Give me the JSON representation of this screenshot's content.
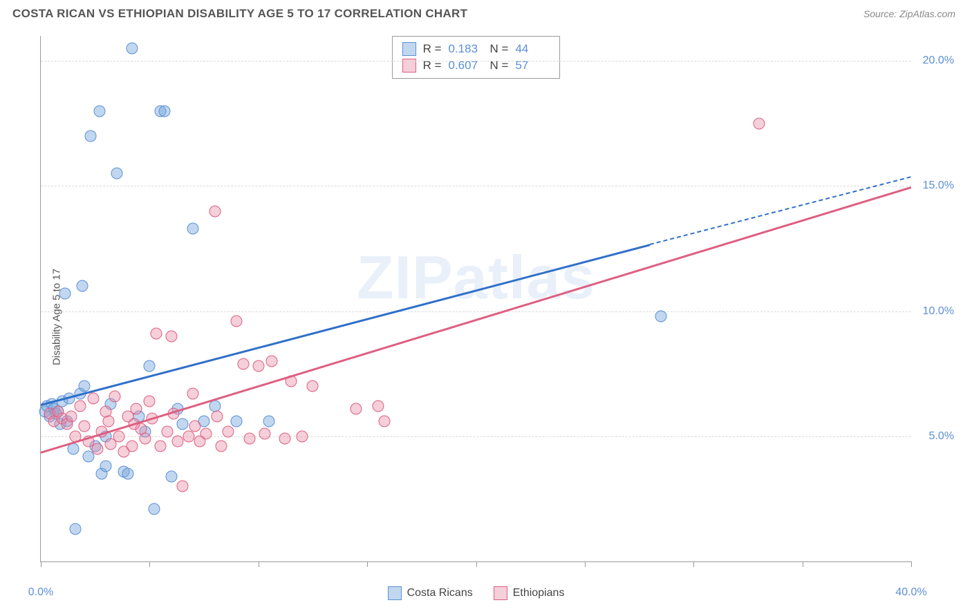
{
  "title": "COSTA RICAN VS ETHIOPIAN DISABILITY AGE 5 TO 17 CORRELATION CHART",
  "source": "Source: ZipAtlas.com",
  "ylabel": "Disability Age 5 to 17",
  "watermark": "ZIPatlas",
  "chart": {
    "type": "scatter",
    "xlim": [
      0,
      40
    ],
    "ylim": [
      0,
      21
    ],
    "y_ticks": [
      5,
      10,
      15,
      20
    ],
    "y_tick_labels": [
      "5.0%",
      "10.0%",
      "15.0%",
      "20.0%"
    ],
    "x_ticks": [
      0,
      5,
      10,
      15,
      20,
      25,
      30,
      35,
      40
    ],
    "x_tick_labels": [
      "0.0%",
      "",
      "",
      "",
      "",
      "",
      "",
      "",
      "40.0%"
    ],
    "background_color": "#ffffff",
    "grid_color": "#d9d9d9",
    "axis_color": "#999999",
    "label_color": "#5b8fd6",
    "point_radius": 8.5,
    "series": [
      {
        "name": "Costa Ricans",
        "fill": "rgba(118,166,219,0.45)",
        "stroke": "#5b8fd6",
        "trend_color": "#2f6fc9",
        "trend": {
          "x0": 0,
          "y0": 6.3,
          "x1": 28,
          "y1": 12.7,
          "extrap_x1": 40,
          "extrap_y1": 15.4
        },
        "R": "0.183",
        "N": "44",
        "points": [
          [
            0.2,
            6.0
          ],
          [
            0.3,
            6.2
          ],
          [
            0.4,
            5.8
          ],
          [
            0.5,
            6.3
          ],
          [
            0.6,
            6.1
          ],
          [
            0.7,
            5.9
          ],
          [
            0.8,
            6.0
          ],
          [
            1.0,
            6.4
          ],
          [
            1.2,
            5.6
          ],
          [
            1.3,
            6.5
          ],
          [
            1.5,
            4.5
          ],
          [
            1.6,
            1.3
          ],
          [
            1.8,
            6.7
          ],
          [
            2.0,
            7.0
          ],
          [
            2.2,
            4.2
          ],
          [
            2.3,
            17.0
          ],
          [
            2.5,
            4.6
          ],
          [
            2.7,
            18.0
          ],
          [
            2.8,
            3.5
          ],
          [
            3.0,
            5.0
          ],
          [
            3.2,
            6.3
          ],
          [
            3.5,
            15.5
          ],
          [
            3.8,
            3.6
          ],
          [
            4.0,
            3.5
          ],
          [
            4.2,
            20.5
          ],
          [
            4.5,
            5.8
          ],
          [
            4.8,
            5.2
          ],
          [
            5.0,
            7.8
          ],
          [
            5.2,
            2.1
          ],
          [
            5.5,
            18.0
          ],
          [
            5.7,
            18.0
          ],
          [
            6.0,
            3.4
          ],
          [
            6.3,
            6.1
          ],
          [
            6.5,
            5.5
          ],
          [
            7.0,
            13.3
          ],
          [
            7.5,
            5.6
          ],
          [
            8.0,
            6.2
          ],
          [
            9.0,
            5.6
          ],
          [
            10.5,
            5.6
          ],
          [
            1.1,
            10.7
          ],
          [
            1.9,
            11.0
          ],
          [
            0.9,
            5.5
          ],
          [
            28.5,
            9.8
          ],
          [
            3.0,
            3.8
          ]
        ]
      },
      {
        "name": "Ethiopians",
        "fill": "rgba(231,140,165,0.42)",
        "stroke": "#de5e81",
        "trend_color": "#de5e81",
        "trend": {
          "x0": 0,
          "y0": 4.4,
          "x1": 40,
          "y1": 15.0
        },
        "R": "0.607",
        "N": "57",
        "points": [
          [
            0.4,
            5.9
          ],
          [
            0.6,
            5.6
          ],
          [
            0.8,
            6.0
          ],
          [
            1.0,
            5.7
          ],
          [
            1.2,
            5.5
          ],
          [
            1.4,
            5.8
          ],
          [
            1.6,
            5.0
          ],
          [
            1.8,
            6.2
          ],
          [
            2.0,
            5.4
          ],
          [
            2.2,
            4.8
          ],
          [
            2.4,
            6.5
          ],
          [
            2.6,
            4.5
          ],
          [
            2.8,
            5.2
          ],
          [
            3.0,
            6.0
          ],
          [
            3.2,
            4.7
          ],
          [
            3.4,
            6.6
          ],
          [
            3.6,
            5.0
          ],
          [
            3.8,
            4.4
          ],
          [
            4.0,
            5.8
          ],
          [
            4.2,
            4.6
          ],
          [
            4.4,
            6.1
          ],
          [
            4.6,
            5.3
          ],
          [
            4.8,
            4.9
          ],
          [
            5.0,
            6.4
          ],
          [
            5.3,
            9.1
          ],
          [
            5.5,
            4.6
          ],
          [
            5.8,
            5.2
          ],
          [
            6.0,
            9.0
          ],
          [
            6.3,
            4.8
          ],
          [
            6.5,
            3.0
          ],
          [
            6.8,
            5.0
          ],
          [
            7.0,
            6.7
          ],
          [
            7.3,
            4.8
          ],
          [
            7.6,
            5.1
          ],
          [
            8.0,
            14.0
          ],
          [
            8.3,
            4.6
          ],
          [
            8.6,
            5.2
          ],
          [
            9.0,
            9.6
          ],
          [
            9.3,
            7.9
          ],
          [
            9.6,
            4.9
          ],
          [
            10.0,
            7.8
          ],
          [
            10.3,
            5.1
          ],
          [
            10.6,
            8.0
          ],
          [
            11.2,
            4.9
          ],
          [
            11.5,
            7.2
          ],
          [
            12.0,
            5.0
          ],
          [
            12.5,
            7.0
          ],
          [
            14.5,
            6.1
          ],
          [
            15.5,
            6.2
          ],
          [
            15.8,
            5.6
          ],
          [
            33.0,
            17.5
          ],
          [
            3.1,
            5.6
          ],
          [
            4.3,
            5.5
          ],
          [
            5.1,
            5.7
          ],
          [
            6.1,
            5.9
          ],
          [
            7.1,
            5.4
          ],
          [
            8.1,
            5.8
          ]
        ]
      }
    ]
  },
  "legend": {
    "items": [
      "Costa Ricans",
      "Ethiopians"
    ]
  }
}
